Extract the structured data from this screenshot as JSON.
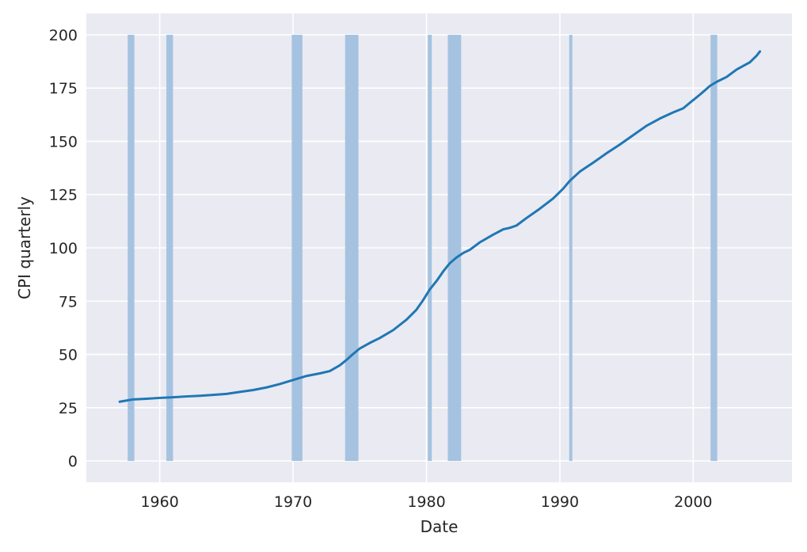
{
  "chart_data": {
    "type": "line",
    "title": "",
    "xlabel": "Date",
    "ylabel": "CPI quarterly",
    "xlim": [
      1954.5,
      2007.4
    ],
    "ylim": [
      -10,
      210
    ],
    "xticks": [
      1960,
      1970,
      1980,
      1990,
      2000
    ],
    "xtick_labels": [
      "1960",
      "1970",
      "1980",
      "1990",
      "2000"
    ],
    "yticks": [
      0,
      25,
      50,
      75,
      100,
      125,
      150,
      175,
      200
    ],
    "ytick_labels": [
      "0",
      "25",
      "50",
      "75",
      "100",
      "125",
      "150",
      "175",
      "200"
    ],
    "grid": true,
    "style": "seaborn-darkgrid",
    "colors": {
      "plot_background": "#eaeaf2",
      "grid": "#ffffff",
      "line": "#1f77b4",
      "recession_band": "#a5c3e0",
      "text": "#262626"
    },
    "series": [
      {
        "x": [
          1957.0,
          1958.0,
          1959.0,
          1960.0,
          1961.0,
          1962.0,
          1963.0,
          1964.0,
          1965.0,
          1966.0,
          1967.0,
          1968.0,
          1969.0,
          1970.0,
          1971.0,
          1972.0,
          1972.75,
          1973.5,
          1974.0,
          1974.5,
          1975.0,
          1975.75,
          1976.5,
          1977.5,
          1978.5,
          1979.25,
          1979.75,
          1980.25,
          1980.75,
          1981.25,
          1981.75,
          1982.25,
          1982.75,
          1983.25,
          1984.0,
          1985.0,
          1985.75,
          1986.25,
          1986.75,
          1987.5,
          1988.5,
          1989.5,
          1990.25,
          1990.75,
          1991.5,
          1992.5,
          1993.5,
          1994.5,
          1995.5,
          1996.5,
          1997.5,
          1998.5,
          1999.25,
          1999.75,
          2000.5,
          2001.25,
          2001.75,
          2002.5,
          2003.25,
          2003.75,
          2004.25,
          2004.75,
          2005.0
        ],
        "values": [
          27.8,
          28.9,
          29.2,
          29.6,
          29.9,
          30.3,
          30.6,
          31.0,
          31.5,
          32.4,
          33.3,
          34.5,
          36.1,
          38.0,
          39.9,
          41.1,
          42.2,
          44.9,
          47.4,
          50.2,
          52.8,
          55.4,
          57.7,
          61.4,
          66.3,
          71.0,
          75.5,
          80.5,
          84.4,
          88.9,
          92.8,
          95.5,
          97.6,
          99.1,
          102.6,
          106.2,
          108.7,
          109.4,
          110.5,
          114.0,
          118.4,
          123.2,
          127.8,
          131.5,
          135.8,
          140.0,
          144.4,
          148.5,
          152.9,
          157.3,
          160.7,
          163.6,
          165.5,
          168.1,
          171.9,
          176.0,
          177.9,
          180.2,
          183.7,
          185.4,
          187.1,
          190.2,
          192.2
        ]
      }
    ],
    "recessions": [
      [
        1957.6,
        1958.1
      ],
      [
        1960.5,
        1961.0
      ],
      [
        1969.9,
        1970.7
      ],
      [
        1973.9,
        1974.9
      ],
      [
        1980.1,
        1980.4
      ],
      [
        1981.6,
        1982.6
      ],
      [
        1990.7,
        1990.9
      ],
      [
        2001.3,
        2001.8
      ]
    ]
  }
}
